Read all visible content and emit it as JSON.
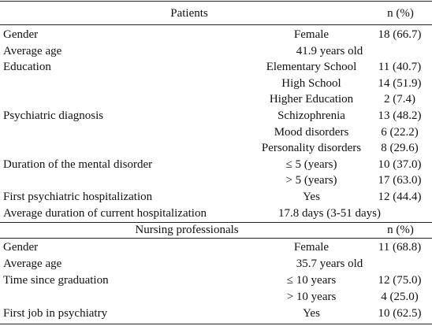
{
  "sections": [
    {
      "header": {
        "title": "Patients",
        "n": "n (%)"
      },
      "groups": [
        {
          "label": "Gender",
          "items": [
            {
              "sub": "Female",
              "value": "18 (66.7)"
            }
          ]
        },
        {
          "label": "Average age",
          "span": "41.9 years old"
        },
        {
          "label": "Education",
          "items": [
            {
              "sub": "Elementary School",
              "value": "11 (40.7)"
            },
            {
              "sub": "High School",
              "value": "14 (51.9)"
            },
            {
              "sub": "Higher Education",
              "value": "2 (7.4)"
            }
          ]
        },
        {
          "label": "Psychiatric diagnosis",
          "items": [
            {
              "sub": "Schizophrenia",
              "value": "13 (48.2)"
            },
            {
              "sub": "Mood disorders",
              "value": "6 (22.2)"
            },
            {
              "sub": "Personality disorders",
              "value": "8 (29.6)"
            }
          ]
        },
        {
          "label": "Duration of the mental disorder",
          "items": [
            {
              "sub": "≤ 5 (years)",
              "value": "10 (37.0)"
            },
            {
              "sub": "> 5 (years)",
              "value": "17 (63.0)"
            }
          ]
        },
        {
          "label": "First psychiatric hospitalization",
          "items": [
            {
              "sub": "Yes",
              "value": "12 (44.4)"
            }
          ]
        },
        {
          "label": "Average duration of current hospitalization",
          "span": "17.8 days (3-51 days)"
        }
      ]
    },
    {
      "header": {
        "title": "Nursing professionals",
        "n": "n (%)"
      },
      "groups": [
        {
          "label": "Gender",
          "items": [
            {
              "sub": "Female",
              "value": "11 (68.8)"
            }
          ]
        },
        {
          "label": "Average age",
          "span": "35.7 years old"
        },
        {
          "label": "Time since graduation",
          "items": [
            {
              "sub": "≤ 10 years",
              "value": "12 (75.0)"
            },
            {
              "sub": "> 10 years",
              "value": "4 (25.0)"
            }
          ]
        },
        {
          "label": "First job in psychiatry",
          "items": [
            {
              "sub": "Yes",
              "value": "10 (62.5)"
            }
          ]
        }
      ]
    }
  ]
}
